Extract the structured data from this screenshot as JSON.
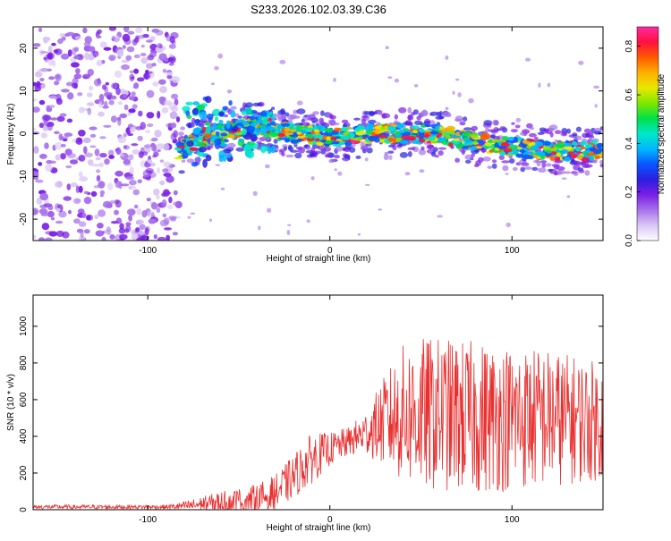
{
  "title": "S233.2026.102.03.39.C36",
  "chart_data": [
    {
      "type": "heatmap",
      "name": "spectrogram",
      "xlabel": "Height of straight line (km)",
      "ylabel": "Frequency (Hz)",
      "xlim": [
        -163,
        150
      ],
      "ylim": [
        -25,
        25
      ],
      "xticks": [
        -100,
        0,
        100
      ],
      "xtick_labels": [
        "-100",
        "0",
        "100"
      ],
      "yticks": [
        -20,
        -10,
        0,
        10,
        20
      ],
      "ytick_labels": [
        "-20",
        "-10",
        "0",
        "10",
        "20"
      ],
      "colorbar": {
        "label": "Normalized spectral amplitude",
        "range": [
          0,
          0.88
        ],
        "ticks": [
          0,
          0.2,
          0.4,
          0.6,
          0.8
        ],
        "tick_labels": [
          "0.0",
          "0.2",
          "0.4",
          "0.6",
          "0.8"
        ],
        "colormap": [
          "#ffffff",
          "#d9c6f4",
          "#a672ea",
          "#7a1fe6",
          "#2a1fe0",
          "#0a55ff",
          "#00b8ff",
          "#00e8c8",
          "#00e04a",
          "#7fe800",
          "#e8e800",
          "#ffb000",
          "#ff5a00",
          "#ff1040",
          "#ff2aa0"
        ]
      },
      "features": {
        "noise_region_x": [
          -163,
          -83
        ],
        "noise_amplitude": 0.22,
        "band_center_hz_by_height": [
          [
            -83,
            -4
          ],
          [
            -70,
            -1
          ],
          [
            -60,
            0
          ],
          [
            -50,
            1
          ],
          [
            -40,
            2
          ],
          [
            -30,
            1
          ],
          [
            -20,
            0
          ],
          [
            -10,
            0
          ],
          [
            0,
            -1
          ],
          [
            20,
            0
          ],
          [
            40,
            0
          ],
          [
            60,
            0
          ],
          [
            70,
            -1
          ],
          [
            80,
            -2
          ],
          [
            100,
            -3
          ],
          [
            120,
            -4
          ],
          [
            150,
            -4
          ]
        ],
        "band_peak_amplitude": 0.85
      }
    },
    {
      "type": "line",
      "name": "snr",
      "xlabel": "Height of straight line (km)",
      "ylabel": "SNR (10 * v/v)",
      "xlim": [
        -163,
        150
      ],
      "ylim": [
        0,
        1170
      ],
      "xticks": [
        -100,
        0,
        100
      ],
      "xtick_labels": [
        "-100",
        "0",
        "100"
      ],
      "yticks": [
        0,
        200,
        400,
        600,
        800,
        1000
      ],
      "ytick_labels": [
        "0",
        "200",
        "400",
        "600",
        "800",
        "1000"
      ],
      "color": "#e83030",
      "envelope": {
        "x": [
          -163,
          -90,
          -80,
          -60,
          -40,
          -30,
          -20,
          -10,
          0,
          10,
          20,
          30,
          40,
          50,
          60,
          80,
          100,
          120,
          150
        ],
        "base": [
          15,
          15,
          20,
          40,
          60,
          90,
          180,
          280,
          330,
          370,
          420,
          480,
          520,
          520,
          520,
          500,
          500,
          500,
          480
        ],
        "spread": [
          12,
          12,
          25,
          60,
          80,
          100,
          120,
          140,
          90,
          80,
          120,
          250,
          380,
          420,
          420,
          420,
          400,
          380,
          320
        ]
      }
    }
  ]
}
